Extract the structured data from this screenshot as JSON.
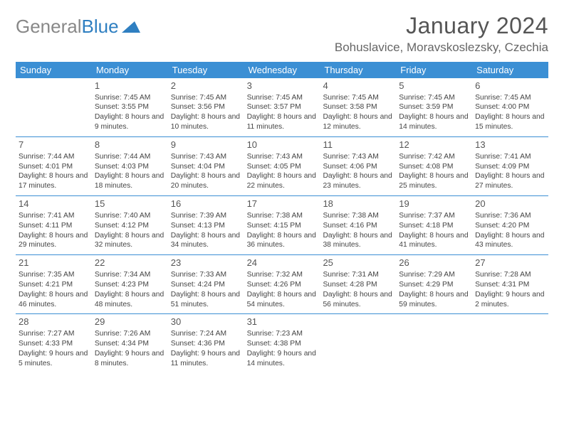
{
  "logo": {
    "text_gray": "General",
    "text_blue": "Blue"
  },
  "title": "January 2024",
  "location": "Bohuslavice, Moravskoslezsky, Czechia",
  "day_headers": [
    "Sunday",
    "Monday",
    "Tuesday",
    "Wednesday",
    "Thursday",
    "Friday",
    "Saturday"
  ],
  "colors": {
    "header_bg": "#3b8fd4",
    "header_text": "#ffffff",
    "rule": "#3b8fd4",
    "logo_gray": "#888888",
    "logo_blue": "#2f7fc1"
  },
  "weeks": [
    [
      null,
      {
        "n": "1",
        "sr": "Sunrise: 7:45 AM",
        "ss": "Sunset: 3:55 PM",
        "dl": "Daylight: 8 hours and 9 minutes."
      },
      {
        "n": "2",
        "sr": "Sunrise: 7:45 AM",
        "ss": "Sunset: 3:56 PM",
        "dl": "Daylight: 8 hours and 10 minutes."
      },
      {
        "n": "3",
        "sr": "Sunrise: 7:45 AM",
        "ss": "Sunset: 3:57 PM",
        "dl": "Daylight: 8 hours and 11 minutes."
      },
      {
        "n": "4",
        "sr": "Sunrise: 7:45 AM",
        "ss": "Sunset: 3:58 PM",
        "dl": "Daylight: 8 hours and 12 minutes."
      },
      {
        "n": "5",
        "sr": "Sunrise: 7:45 AM",
        "ss": "Sunset: 3:59 PM",
        "dl": "Daylight: 8 hours and 14 minutes."
      },
      {
        "n": "6",
        "sr": "Sunrise: 7:45 AM",
        "ss": "Sunset: 4:00 PM",
        "dl": "Daylight: 8 hours and 15 minutes."
      }
    ],
    [
      {
        "n": "7",
        "sr": "Sunrise: 7:44 AM",
        "ss": "Sunset: 4:01 PM",
        "dl": "Daylight: 8 hours and 17 minutes."
      },
      {
        "n": "8",
        "sr": "Sunrise: 7:44 AM",
        "ss": "Sunset: 4:03 PM",
        "dl": "Daylight: 8 hours and 18 minutes."
      },
      {
        "n": "9",
        "sr": "Sunrise: 7:43 AM",
        "ss": "Sunset: 4:04 PM",
        "dl": "Daylight: 8 hours and 20 minutes."
      },
      {
        "n": "10",
        "sr": "Sunrise: 7:43 AM",
        "ss": "Sunset: 4:05 PM",
        "dl": "Daylight: 8 hours and 22 minutes."
      },
      {
        "n": "11",
        "sr": "Sunrise: 7:43 AM",
        "ss": "Sunset: 4:06 PM",
        "dl": "Daylight: 8 hours and 23 minutes."
      },
      {
        "n": "12",
        "sr": "Sunrise: 7:42 AM",
        "ss": "Sunset: 4:08 PM",
        "dl": "Daylight: 8 hours and 25 minutes."
      },
      {
        "n": "13",
        "sr": "Sunrise: 7:41 AM",
        "ss": "Sunset: 4:09 PM",
        "dl": "Daylight: 8 hours and 27 minutes."
      }
    ],
    [
      {
        "n": "14",
        "sr": "Sunrise: 7:41 AM",
        "ss": "Sunset: 4:11 PM",
        "dl": "Daylight: 8 hours and 29 minutes."
      },
      {
        "n": "15",
        "sr": "Sunrise: 7:40 AM",
        "ss": "Sunset: 4:12 PM",
        "dl": "Daylight: 8 hours and 32 minutes."
      },
      {
        "n": "16",
        "sr": "Sunrise: 7:39 AM",
        "ss": "Sunset: 4:13 PM",
        "dl": "Daylight: 8 hours and 34 minutes."
      },
      {
        "n": "17",
        "sr": "Sunrise: 7:38 AM",
        "ss": "Sunset: 4:15 PM",
        "dl": "Daylight: 8 hours and 36 minutes."
      },
      {
        "n": "18",
        "sr": "Sunrise: 7:38 AM",
        "ss": "Sunset: 4:16 PM",
        "dl": "Daylight: 8 hours and 38 minutes."
      },
      {
        "n": "19",
        "sr": "Sunrise: 7:37 AM",
        "ss": "Sunset: 4:18 PM",
        "dl": "Daylight: 8 hours and 41 minutes."
      },
      {
        "n": "20",
        "sr": "Sunrise: 7:36 AM",
        "ss": "Sunset: 4:20 PM",
        "dl": "Daylight: 8 hours and 43 minutes."
      }
    ],
    [
      {
        "n": "21",
        "sr": "Sunrise: 7:35 AM",
        "ss": "Sunset: 4:21 PM",
        "dl": "Daylight: 8 hours and 46 minutes."
      },
      {
        "n": "22",
        "sr": "Sunrise: 7:34 AM",
        "ss": "Sunset: 4:23 PM",
        "dl": "Daylight: 8 hours and 48 minutes."
      },
      {
        "n": "23",
        "sr": "Sunrise: 7:33 AM",
        "ss": "Sunset: 4:24 PM",
        "dl": "Daylight: 8 hours and 51 minutes."
      },
      {
        "n": "24",
        "sr": "Sunrise: 7:32 AM",
        "ss": "Sunset: 4:26 PM",
        "dl": "Daylight: 8 hours and 54 minutes."
      },
      {
        "n": "25",
        "sr": "Sunrise: 7:31 AM",
        "ss": "Sunset: 4:28 PM",
        "dl": "Daylight: 8 hours and 56 minutes."
      },
      {
        "n": "26",
        "sr": "Sunrise: 7:29 AM",
        "ss": "Sunset: 4:29 PM",
        "dl": "Daylight: 8 hours and 59 minutes."
      },
      {
        "n": "27",
        "sr": "Sunrise: 7:28 AM",
        "ss": "Sunset: 4:31 PM",
        "dl": "Daylight: 9 hours and 2 minutes."
      }
    ],
    [
      {
        "n": "28",
        "sr": "Sunrise: 7:27 AM",
        "ss": "Sunset: 4:33 PM",
        "dl": "Daylight: 9 hours and 5 minutes."
      },
      {
        "n": "29",
        "sr": "Sunrise: 7:26 AM",
        "ss": "Sunset: 4:34 PM",
        "dl": "Daylight: 9 hours and 8 minutes."
      },
      {
        "n": "30",
        "sr": "Sunrise: 7:24 AM",
        "ss": "Sunset: 4:36 PM",
        "dl": "Daylight: 9 hours and 11 minutes."
      },
      {
        "n": "31",
        "sr": "Sunrise: 7:23 AM",
        "ss": "Sunset: 4:38 PM",
        "dl": "Daylight: 9 hours and 14 minutes."
      },
      null,
      null,
      null
    ]
  ]
}
